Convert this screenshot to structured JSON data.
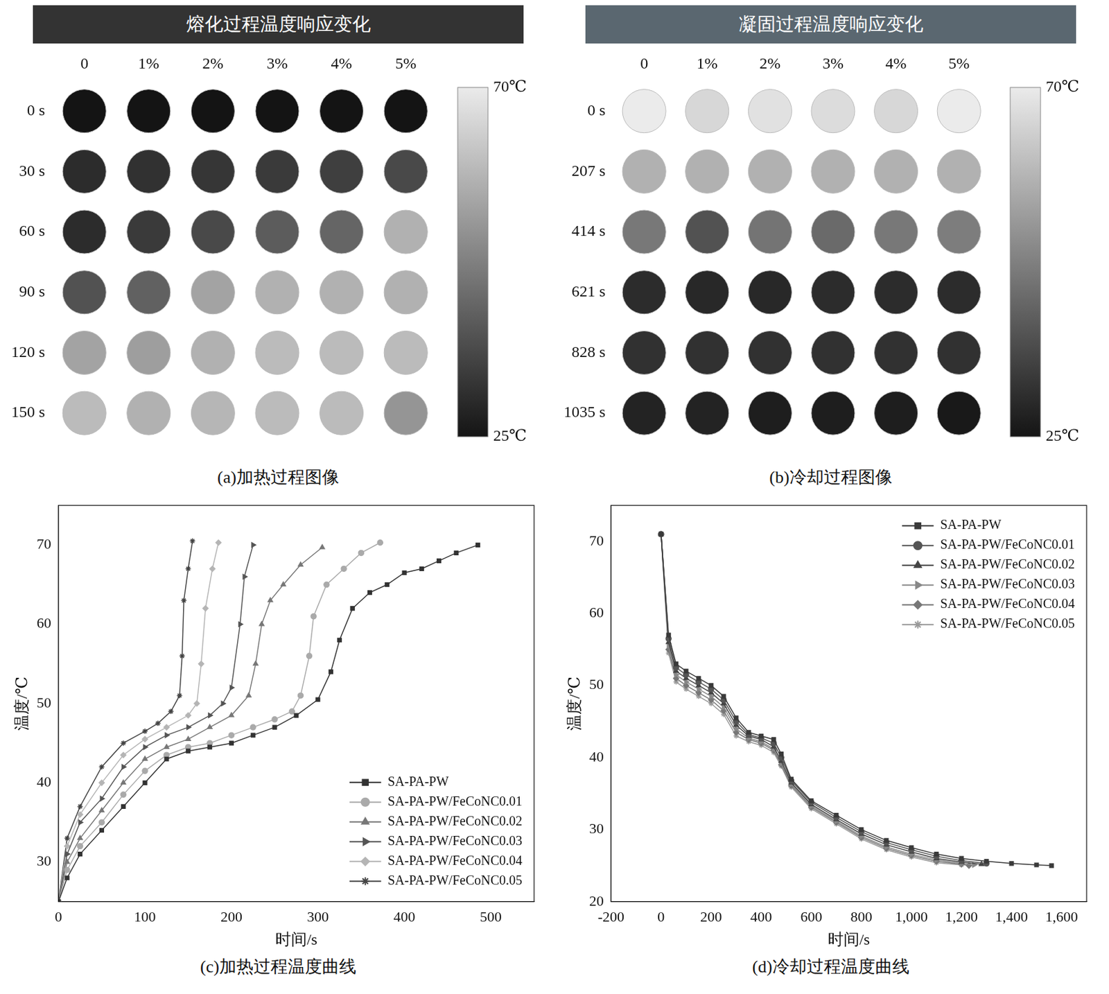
{
  "chart_data": [
    {
      "type": "heatmap",
      "title": "熔化过程温度响应变化",
      "caption": "(a)加热过程图像",
      "columns": [
        "0",
        "1%",
        "2%",
        "3%",
        "4%",
        "5%"
      ],
      "rows": [
        "0 s",
        "30 s",
        "60 s",
        "90 s",
        "120 s",
        "150 s"
      ],
      "cells": [
        [
          25,
          25,
          25,
          25,
          25,
          25
        ],
        [
          30,
          31,
          32,
          33,
          34,
          36
        ],
        [
          30,
          33,
          36,
          40,
          42,
          58
        ],
        [
          38,
          41,
          55,
          58,
          58,
          58
        ],
        [
          55,
          54,
          58,
          60,
          60,
          60
        ],
        [
          60,
          58,
          59,
          60,
          60,
          52
        ]
      ],
      "colorbar": {
        "range": [
          25,
          70
        ],
        "ticks": [
          {
            "value": 70,
            "label": "70℃"
          },
          {
            "value": 25,
            "label": "25℃"
          }
        ]
      }
    },
    {
      "type": "heatmap",
      "title": "凝固过程温度响应变化",
      "caption": "(b)冷却过程图像",
      "columns": [
        "0",
        "1%",
        "2%",
        "3%",
        "4%",
        "5%"
      ],
      "rows": [
        "0 s",
        "207 s",
        "414 s",
        "621 s",
        "828 s",
        "1035 s"
      ],
      "cells": [
        [
          70,
          66,
          68,
          67,
          66,
          70
        ],
        [
          58,
          58,
          58,
          58,
          58,
          58
        ],
        [
          46,
          38,
          45,
          43,
          46,
          47
        ],
        [
          30,
          29,
          29,
          30,
          30,
          30
        ],
        [
          31,
          31,
          31,
          31,
          31,
          31
        ],
        [
          28,
          28,
          27,
          27,
          27,
          26
        ]
      ],
      "colorbar": {
        "range": [
          25,
          70
        ],
        "ticks": [
          {
            "value": 70,
            "label": "70℃"
          },
          {
            "value": 25,
            "label": "25℃"
          }
        ]
      }
    },
    {
      "type": "line",
      "caption": "(c)加热过程温度曲线",
      "xlabel": "时间/s",
      "ylabel": "温度/℃",
      "xlim": [
        0,
        550
      ],
      "xticks": [
        0,
        100,
        200,
        300,
        400,
        500
      ],
      "ylim": [
        25,
        75
      ],
      "yticks": [
        30,
        40,
        50,
        60,
        70
      ],
      "grid": false,
      "legend": "lower right",
      "series": [
        {
          "name": "SA-PA-PW",
          "color": "#333333",
          "marker": "square",
          "x": [
            0,
            10,
            25,
            50,
            75,
            100,
            125,
            150,
            175,
            200,
            225,
            250,
            275,
            300,
            315,
            325,
            340,
            360,
            380,
            400,
            420,
            440,
            460,
            485
          ],
          "values": [
            25,
            28,
            31,
            34,
            37,
            40,
            43,
            44,
            44.5,
            45,
            46,
            47,
            48.5,
            50.5,
            54,
            58,
            62,
            64,
            65,
            66.5,
            67,
            68,
            69,
            70
          ]
        },
        {
          "name": "SA-PA-PW/FeCoNC0.01",
          "color": "#aaaaaa",
          "marker": "circle",
          "x": [
            0,
            10,
            25,
            50,
            75,
            100,
            125,
            150,
            175,
            200,
            225,
            250,
            270,
            280,
            290,
            295,
            310,
            330,
            350,
            372
          ],
          "values": [
            25,
            29,
            32,
            35,
            38.5,
            41.5,
            43.5,
            44.5,
            45,
            46,
            47,
            48,
            49,
            51,
            56,
            61,
            65,
            67,
            69,
            70.3
          ]
        },
        {
          "name": "SA-PA-PW/FeCoNC0.02",
          "color": "#777777",
          "marker": "triangle",
          "x": [
            0,
            10,
            25,
            50,
            75,
            100,
            125,
            150,
            175,
            200,
            220,
            228,
            235,
            245,
            260,
            280,
            305
          ],
          "values": [
            25,
            30,
            33,
            36.5,
            40,
            43,
            44.5,
            45.5,
            47,
            48.5,
            51,
            55,
            60,
            63,
            65,
            67.5,
            69.7
          ]
        },
        {
          "name": "SA-PA-PW/FeCoNC0.03",
          "color": "#555555",
          "marker": "triangle-right",
          "x": [
            0,
            10,
            25,
            50,
            75,
            100,
            125,
            150,
            175,
            190,
            200,
            210,
            215,
            225
          ],
          "values": [
            25,
            31,
            35,
            38,
            42,
            44.5,
            46,
            47,
            48.5,
            50,
            52,
            60,
            66,
            70
          ]
        },
        {
          "name": "SA-PA-PW/FeCoNC0.04",
          "color": "#b5b5b5",
          "marker": "diamond",
          "x": [
            0,
            10,
            25,
            50,
            75,
            100,
            125,
            150,
            160,
            165,
            170,
            178,
            185
          ],
          "values": [
            25,
            32,
            36,
            40,
            43.5,
            45.5,
            47,
            48.5,
            50,
            55,
            62,
            67,
            70.3
          ]
        },
        {
          "name": "SA-PA-PW/FeCoNC0.05",
          "color": "#444444",
          "marker": "star",
          "x": [
            0,
            10,
            25,
            50,
            75,
            100,
            115,
            130,
            140,
            143,
            145,
            150,
            155
          ],
          "values": [
            25,
            33,
            37,
            42,
            45,
            46.5,
            47.5,
            49,
            51,
            56,
            63,
            67,
            70.5
          ]
        }
      ]
    },
    {
      "type": "line",
      "caption": "(d)冷却过程温度曲线",
      "xlabel": "时间/s",
      "ylabel": "温度/℃",
      "xlim": [
        -200,
        1700
      ],
      "xticks": [
        -200,
        0,
        200,
        400,
        600,
        800,
        1000,
        1200,
        1400,
        1600
      ],
      "ylim": [
        20,
        75
      ],
      "yticks": [
        20,
        30,
        40,
        50,
        60,
        70
      ],
      "grid": false,
      "legend": "upper right",
      "series": [
        {
          "name": "SA-PA-PW",
          "color": "#3a3a3a",
          "marker": "square",
          "x": [
            0,
            30,
            60,
            100,
            150,
            200,
            250,
            300,
            350,
            400,
            450,
            480,
            520,
            600,
            700,
            800,
            900,
            1000,
            1100,
            1200,
            1300,
            1400,
            1500,
            1560
          ],
          "values": [
            71,
            57,
            53,
            52,
            51,
            50,
            48.5,
            45.5,
            43.5,
            43,
            42.5,
            40.5,
            37,
            34,
            32,
            30,
            28.5,
            27.5,
            26.6,
            26,
            25.6,
            25.3,
            25.1,
            25
          ]
        },
        {
          "name": "SA-PA-PW/FeCoNC0.01",
          "color": "#555555",
          "marker": "circle",
          "x": [
            0,
            30,
            60,
            100,
            150,
            200,
            250,
            300,
            350,
            400,
            450,
            480,
            520,
            600,
            700,
            800,
            900,
            1000,
            1100,
            1200,
            1300
          ],
          "values": [
            71,
            56.5,
            52.5,
            51.5,
            50.5,
            49.5,
            48,
            45,
            43.2,
            42.7,
            42,
            40,
            36.8,
            33.8,
            31.7,
            29.7,
            28.2,
            27.2,
            26.3,
            25.7,
            25.3
          ]
        },
        {
          "name": "SA-PA-PW/FeCoNC0.02",
          "color": "#444444",
          "marker": "triangle",
          "x": [
            0,
            30,
            60,
            100,
            150,
            200,
            250,
            300,
            350,
            400,
            450,
            480,
            520,
            600,
            700,
            800,
            900,
            1000,
            1100,
            1200,
            1280
          ],
          "values": [
            71,
            56,
            52,
            51,
            50,
            49,
            47.5,
            44.5,
            43,
            42.5,
            41.5,
            39.5,
            36.5,
            33.5,
            31.4,
            29.4,
            27.9,
            26.9,
            26,
            25.5,
            25.2
          ]
        },
        {
          "name": "SA-PA-PW/FeCoNC0.03",
          "color": "#888888",
          "marker": "triangle-right",
          "x": [
            0,
            30,
            60,
            100,
            150,
            200,
            250,
            300,
            350,
            400,
            450,
            480,
            520,
            600,
            700,
            800,
            900,
            1000,
            1100,
            1200,
            1250
          ],
          "values": [
            71,
            55.5,
            51.5,
            50.5,
            49.5,
            48.5,
            47,
            44,
            42.7,
            42.2,
            41.2,
            39.2,
            36.3,
            33.3,
            31.2,
            29.1,
            27.6,
            26.6,
            25.8,
            25.3,
            25.1
          ]
        },
        {
          "name": "SA-PA-PW/FeCoNC0.04",
          "color": "#777777",
          "marker": "diamond",
          "x": [
            0,
            30,
            60,
            100,
            150,
            200,
            250,
            300,
            350,
            400,
            450,
            480,
            520,
            600,
            700,
            800,
            900,
            1000,
            1100,
            1200,
            1230
          ],
          "values": [
            71,
            55,
            51,
            50,
            49,
            48,
            46.5,
            43.5,
            42.5,
            42,
            41,
            39,
            36.1,
            33.1,
            31,
            28.9,
            27.4,
            26.4,
            25.6,
            25.2,
            25
          ]
        },
        {
          "name": "SA-PA-PW/FeCoNC0.05",
          "color": "#999999",
          "marker": "star",
          "x": [
            0,
            30,
            60,
            100,
            150,
            200,
            250,
            300,
            350,
            400,
            450,
            480,
            520,
            600,
            700,
            800,
            900,
            1000,
            1100,
            1200
          ],
          "values": [
            71,
            54.5,
            50.5,
            49.5,
            48.5,
            47.5,
            46,
            43,
            42.2,
            41.7,
            40.7,
            38.8,
            35.9,
            32.9,
            30.8,
            28.7,
            27.2,
            26.2,
            25.4,
            25.1
          ]
        }
      ]
    }
  ]
}
